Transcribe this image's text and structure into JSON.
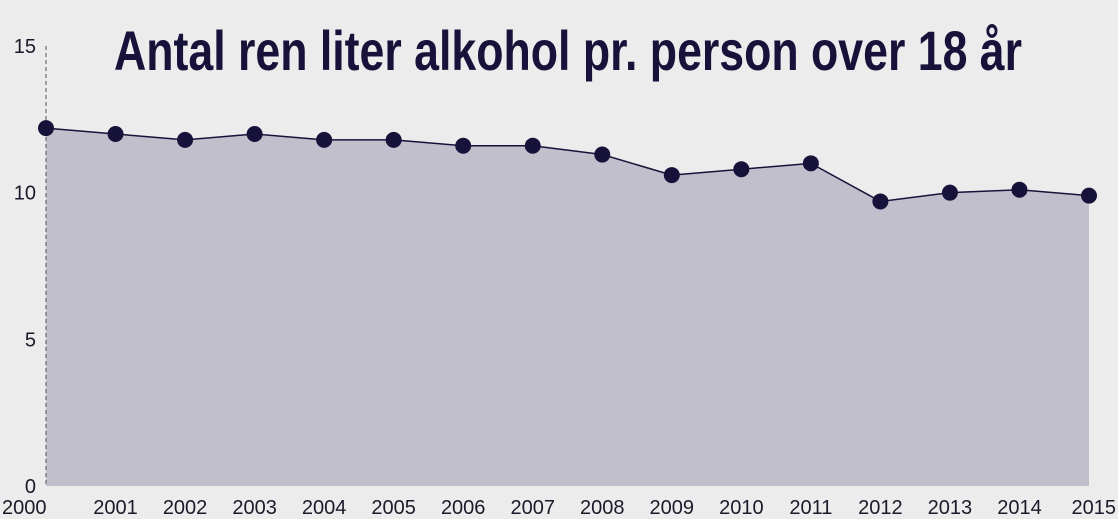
{
  "chart_data": {
    "type": "area",
    "title": "Antal ren liter alkohol pr. person over 18 år",
    "xlabel": "",
    "ylabel": "",
    "x": [
      "2000",
      "2001",
      "2002",
      "2003",
      "2004",
      "2005",
      "2006",
      "2007",
      "2008",
      "2009",
      "2010",
      "2011",
      "2012",
      "2013",
      "2014",
      "2015"
    ],
    "series": [
      {
        "values": [
          12.2,
          12.0,
          11.8,
          12.0,
          11.8,
          11.8,
          11.6,
          11.6,
          11.3,
          10.6,
          10.8,
          11.0,
          9.7,
          10.0,
          10.1,
          9.9
        ]
      }
    ],
    "ylim": [
      0,
      15
    ],
    "yticks": [
      "0",
      "5",
      "10",
      "15"
    ],
    "grid": false,
    "colors": {
      "line": "#16123a",
      "marker": "#16123a",
      "area_fill": "#c1bfcb",
      "background": "#ececec",
      "axis": "#555555"
    }
  }
}
